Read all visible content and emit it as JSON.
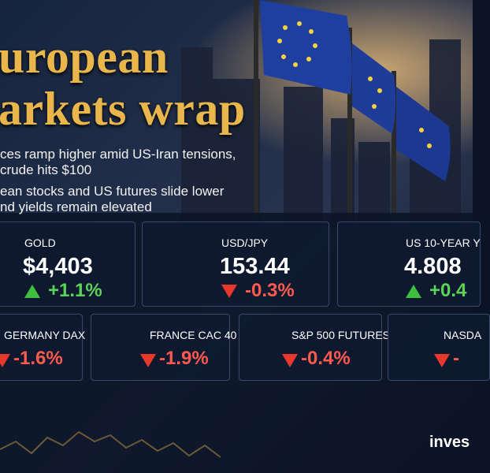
{
  "header": {
    "title_lines": [
      "uropean",
      "arkets wrap"
    ]
  },
  "bullets": [
    [
      "ces ramp higher amid US-Iran tensions,",
      "crude hits $100"
    ],
    [
      "ean stocks and US futures slide lower",
      "nd yields remain elevated"
    ]
  ],
  "cards_top": [
    {
      "label": "GOLD",
      "value": "$4,403",
      "change": "+1.1%",
      "direction": "up"
    },
    {
      "label": "USD/JPY",
      "value": "153.44",
      "change": "-0.3%",
      "direction": "down"
    },
    {
      "label": "US 10-YEAR Y",
      "value": "4.808",
      "change": "+0.4",
      "direction": "up"
    }
  ],
  "cards_bottom": [
    {
      "label": "GERMANY DAX",
      "change": "-1.6%",
      "direction": "down"
    },
    {
      "label": "FRANCE CAC 40",
      "change": "-1.9%",
      "direction": "down"
    },
    {
      "label": "S&P 500 FUTURES",
      "change": "-0.4%",
      "direction": "down"
    },
    {
      "label": "NASDA",
      "change": "-",
      "direction": "down"
    }
  ],
  "logo": "inves"
}
